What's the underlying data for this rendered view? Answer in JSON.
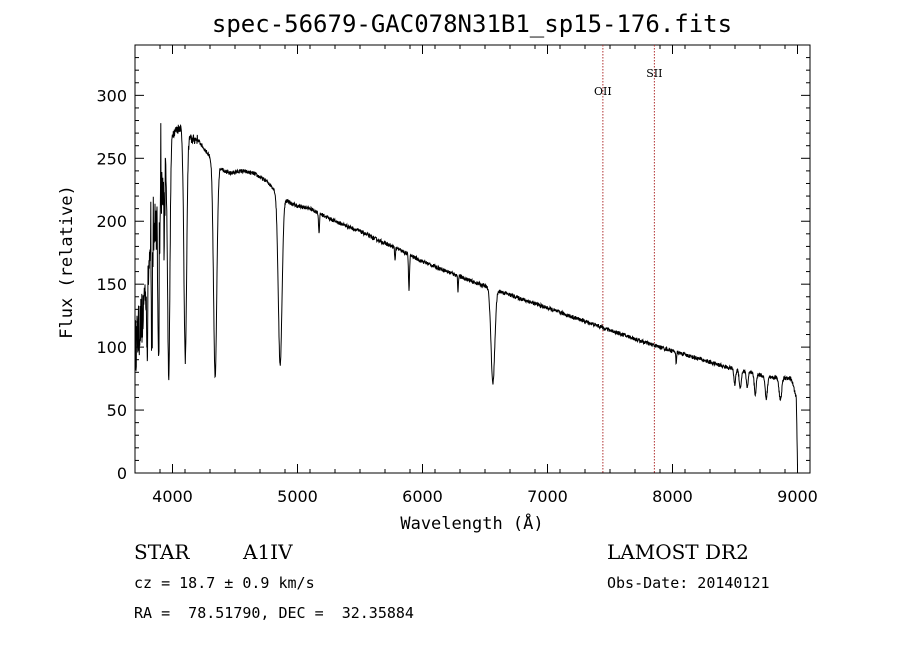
{
  "chart_data": {
    "type": "line",
    "title": "spec-56679-GAC078N31B1_sp15-176.fits",
    "xlabel": "Wavelength (Å)",
    "ylabel": "Flux (relative)",
    "xlim": [
      3700,
      9100
    ],
    "ylim": [
      0,
      340
    ],
    "xticks": [
      4000,
      5000,
      6000,
      7000,
      8000,
      9000
    ],
    "yticks": [
      0,
      50,
      100,
      150,
      200,
      250,
      300
    ],
    "grid": false,
    "continuum": {
      "x": [
        3700,
        3760,
        3800,
        3850,
        3900,
        3950,
        4000,
        4060,
        4150,
        4200,
        4250,
        4350,
        4450,
        4550,
        4650,
        4750,
        4850,
        4950,
        5000,
        5100,
        5200,
        5300,
        5400,
        5500,
        5600,
        5800,
        6000,
        6200,
        6400,
        6600,
        6800,
        7000,
        7200,
        7400,
        7600,
        7800,
        8000,
        8200,
        8400,
        8600,
        8800,
        8950,
        8990,
        9000
      ],
      "y": [
        100,
        125,
        160,
        190,
        215,
        240,
        270,
        275,
        265,
        265,
        258,
        245,
        238,
        240,
        238,
        232,
        222,
        214,
        212,
        210,
        205,
        200,
        196,
        192,
        187,
        178,
        168,
        160,
        152,
        145,
        138,
        131,
        124,
        117,
        110,
        103,
        97,
        91,
        85,
        80,
        76,
        75,
        60,
        5
      ]
    },
    "absorption_lines": [
      {
        "x": 3798,
        "depth": 60,
        "width": 4
      },
      {
        "x": 3835,
        "depth": 80,
        "width": 5
      },
      {
        "x": 3889,
        "depth": 110,
        "width": 6
      },
      {
        "x": 3934,
        "depth": 60,
        "width": 3
      },
      {
        "x": 3970,
        "depth": 175,
        "width": 9
      },
      {
        "x": 4102,
        "depth": 180,
        "width": 11
      },
      {
        "x": 4341,
        "depth": 170,
        "width": 13
      },
      {
        "x": 4861,
        "depth": 135,
        "width": 15
      },
      {
        "x": 5172,
        "depth": 15,
        "width": 4
      },
      {
        "x": 5780,
        "depth": 10,
        "width": 3
      },
      {
        "x": 5892,
        "depth": 28,
        "width": 4
      },
      {
        "x": 6284,
        "depth": 12,
        "width": 3
      },
      {
        "x": 6563,
        "depth": 75,
        "width": 15
      },
      {
        "x": 8030,
        "depth": 10,
        "width": 3
      },
      {
        "x": 8498,
        "depth": 12,
        "width": 7
      },
      {
        "x": 8542,
        "depth": 14,
        "width": 8
      },
      {
        "x": 8598,
        "depth": 12,
        "width": 7
      },
      {
        "x": 8662,
        "depth": 16,
        "width": 8
      },
      {
        "x": 8750,
        "depth": 18,
        "width": 9
      },
      {
        "x": 8863,
        "depth": 18,
        "width": 10
      }
    ],
    "marker_lines": [
      {
        "label": "OII",
        "x": 7443
      },
      {
        "label": "SII",
        "x": 7855
      }
    ]
  },
  "info": {
    "object_type": "STAR",
    "subclass": "A1IV",
    "survey": "LAMOST DR2",
    "redshift": "cz = 18.7 ± 0.9 km/s",
    "obs_date": "Obs-Date: 20140121",
    "coords": "RA =  78.51790, DEC =  32.35884"
  },
  "colors": {
    "spectrum": "#000000",
    "marker_line": "#b03030",
    "axes": "#000000"
  }
}
